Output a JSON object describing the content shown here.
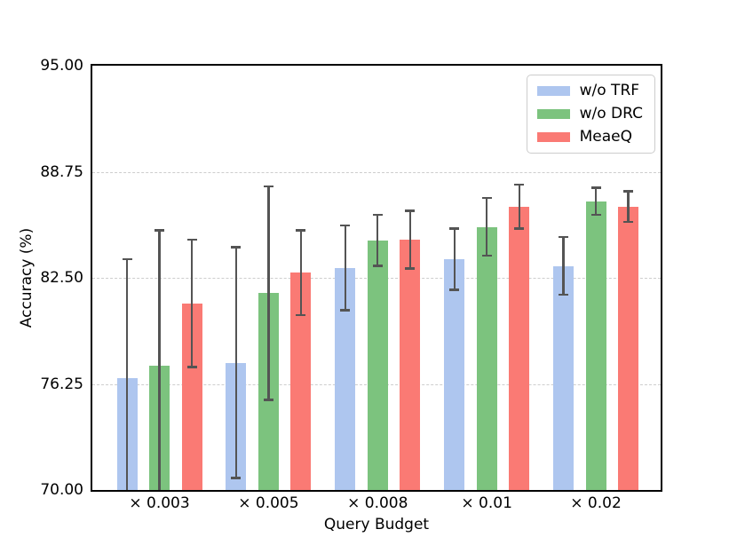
{
  "chart_data": {
    "type": "bar",
    "title": "",
    "xlabel": "Query Budget",
    "ylabel": "Accuracy (%)",
    "categories": [
      "× 0.003",
      "× 0.005",
      "× 0.008",
      "× 0.01",
      "× 0.02"
    ],
    "ylim": [
      70,
      95
    ],
    "yticks": [
      70,
      76.25,
      82.5,
      88.75,
      95
    ],
    "ytick_labels": [
      "70.00",
      "76.25",
      "82.50",
      "88.75",
      "95.00"
    ],
    "grid": {
      "axis": "y",
      "style": "dashed",
      "color": "#cdcdcd",
      "lines_at": [
        76.25,
        82.5,
        88.75
      ]
    },
    "legend": {
      "position": "upper right"
    },
    "error_bar_color": "#545454",
    "series": [
      {
        "name": "w/o TRF",
        "color": "#aec6ef",
        "values": [
          76.6,
          77.5,
          83.1,
          83.6,
          83.2
        ],
        "errors": [
          7.0,
          6.8,
          2.5,
          1.8,
          1.7
        ]
      },
      {
        "name": "w/o DRC",
        "color": "#7cc37e",
        "values": [
          77.3,
          81.6,
          84.7,
          85.5,
          87.0
        ],
        "errors": [
          8.0,
          6.3,
          1.5,
          1.7,
          0.8
        ]
      },
      {
        "name": "MeaeQ",
        "color": "#fa7a74",
        "values": [
          81.0,
          82.8,
          84.75,
          86.7,
          86.7
        ],
        "errors": [
          3.75,
          2.5,
          1.7,
          1.3,
          0.9
        ]
      }
    ]
  }
}
